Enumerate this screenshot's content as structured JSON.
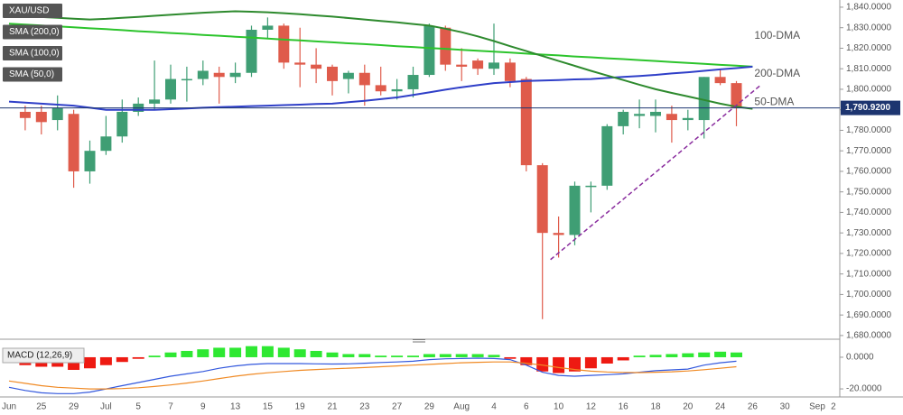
{
  "chart_data": [
    {
      "type": "candlestick",
      "symbol": "XAU/USD",
      "categories": [
        "Jun",
        null,
        "25",
        null,
        "29",
        null,
        "Jul",
        null,
        "5",
        null,
        "7",
        null,
        "9",
        null,
        "13",
        null,
        "15",
        null,
        "19",
        null,
        "21",
        null,
        "23",
        null,
        "27",
        null,
        "29",
        null,
        "Aug",
        null,
        "4",
        null,
        "6",
        null,
        "10",
        null,
        "12",
        null,
        "16",
        null,
        "18",
        null,
        "20",
        null,
        "24",
        null,
        "26",
        null,
        "30",
        null,
        "Sep",
        "2"
      ],
      "open": [
        null,
        1789,
        1789,
        1785,
        1788,
        1760,
        1770,
        1777,
        1789,
        1793,
        1795,
        1805,
        1805,
        1808,
        1806,
        1808,
        1829,
        1831,
        1813,
        1812,
        1811,
        1805,
        1808,
        1802,
        1799,
        1800,
        1807,
        1830,
        1812,
        1814,
        1810,
        1813,
        1805,
        1763,
        1730,
        1729,
        1753,
        1753,
        1782,
        1787,
        1787,
        1788,
        1785,
        1785,
        1806,
        1803,
        null,
        null,
        null,
        null,
        null,
        null
      ],
      "high": [
        null,
        1792,
        1792,
        1797,
        1790,
        1775,
        1787,
        1795,
        1796,
        1814,
        1812,
        1811,
        1814,
        1811,
        1813,
        1831,
        1835,
        1832,
        1830,
        1820,
        1812,
        1809,
        1812,
        1811,
        1805,
        1811,
        1832,
        1831,
        1820,
        1815,
        1832,
        1815,
        1806,
        1764,
        1738,
        1755,
        1755,
        1783,
        1790,
        1795,
        1795,
        1792,
        1790,
        1806,
        1810,
        1804,
        null,
        null,
        null,
        null,
        null,
        null
      ],
      "low": [
        null,
        1780,
        1778,
        1780,
        1752,
        1754,
        1768,
        1774,
        1787,
        1790,
        1793,
        1794,
        1802,
        1793,
        1803,
        1806,
        1825,
        1810,
        1801,
        1803,
        1797,
        1798,
        1792,
        1797,
        1795,
        1796,
        1806,
        1809,
        1804,
        1807,
        1807,
        1801,
        1760,
        1688,
        1718,
        1724,
        1740,
        1751,
        1778,
        1781,
        1779,
        1774,
        1780,
        1776,
        1802,
        1782,
        null,
        null,
        null,
        null,
        null,
        null
      ],
      "close": [
        null,
        1786,
        1784,
        1791,
        1760,
        1770,
        1777,
        1789,
        1793,
        1795,
        1805,
        1805,
        1809,
        1806,
        1808,
        1829,
        1831,
        1813,
        1812,
        1810,
        1804,
        1808,
        1802,
        1799,
        1800,
        1807,
        1831,
        1812,
        1811,
        1810,
        1813,
        1804,
        1763,
        1730,
        1729,
        1753,
        1753,
        1782,
        1789,
        1788,
        1789,
        1785,
        1786,
        1806,
        1803,
        1791,
        null,
        null,
        null,
        null,
        null,
        null
      ],
      "up_color": "#3f9e74",
      "down_color": "#df5b4b",
      "series": [
        {
          "name": "SMA (200,0)",
          "label": "200-DMA",
          "color": "#2cc42c",
          "values": [
            1832,
            1831.5,
            1831.1,
            1830.6,
            1830.2,
            1829.7,
            1829.3,
            1828.8,
            1828.3,
            1827.9,
            1827.4,
            1827,
            1826.5,
            1826.1,
            1825.6,
            1825.2,
            1824.7,
            1824.2,
            1823.8,
            1823.3,
            1822.9,
            1822.4,
            1822,
            1821.5,
            1821,
            1820.6,
            1820.1,
            1819.7,
            1819.2,
            1818.8,
            1818.3,
            1817.9,
            1817.4,
            1816.9,
            1816.5,
            1816,
            1815.6,
            1815.1,
            1814.7,
            1814.2,
            1813.8,
            1813.3,
            1812.8,
            1812.4,
            1811.9,
            1811.5,
            1811,
            null,
            null,
            null,
            null,
            null
          ]
        },
        {
          "name": "SMA (100,0)",
          "label": "100-DMA",
          "color": "#2f3fc8",
          "values": [
            1794,
            1793.5,
            1793,
            1792.5,
            1792,
            1791,
            1790,
            1790,
            1790,
            1790,
            1790.3,
            1790.6,
            1791,
            1791.3,
            1791.5,
            1791.8,
            1792,
            1792.3,
            1792.5,
            1792.8,
            1793,
            1793.7,
            1794.4,
            1795.2,
            1796,
            1797.2,
            1798.5,
            1799.8,
            1801,
            1802,
            1803,
            1803.5,
            1804,
            1804.3,
            1804.5,
            1804.8,
            1805,
            1805.5,
            1806,
            1806.5,
            1807,
            1807.7,
            1808.3,
            1809,
            1809.7,
            1810.3,
            1811,
            null,
            null,
            null,
            null,
            null
          ]
        },
        {
          "name": "SMA (50,0)",
          "label": "50-DMA",
          "color": "#2e8a2e",
          "values": [
            1836,
            1835.6,
            1835.2,
            1834.8,
            1834.4,
            1834,
            1834.3,
            1834.8,
            1835.3,
            1835.8,
            1836.3,
            1836.8,
            1837.3,
            1837.7,
            1838,
            1837.8,
            1837.5,
            1837.1,
            1836.6,
            1836,
            1835.4,
            1834.7,
            1834,
            1833.3,
            1832.6,
            1831.8,
            1831,
            1829.5,
            1827.8,
            1825.8,
            1823.5,
            1821,
            1818.6,
            1816.2,
            1813.8,
            1811.4,
            1809,
            1806.7,
            1804.5,
            1802.2,
            1800,
            1798.2,
            1796.5,
            1794.8,
            1793,
            1791.5,
            1790.5,
            null,
            null,
            null,
            null,
            null
          ]
        }
      ],
      "ylim": [
        1678.2,
        1843.5
      ],
      "yticks": [
        {
          "value": 1680,
          "label": "1,680.0000"
        },
        {
          "value": 1690,
          "label": "1,690.0000"
        },
        {
          "value": 1700,
          "label": "1,700.0000"
        },
        {
          "value": 1710,
          "label": "1,710.0000"
        },
        {
          "value": 1720,
          "label": "1,720.0000"
        },
        {
          "value": 1730,
          "label": "1,730.0000"
        },
        {
          "value": 1740,
          "label": "1,740.0000"
        },
        {
          "value": 1750,
          "label": "1,750.0000"
        },
        {
          "value": 1760,
          "label": "1,760.0000"
        },
        {
          "value": 1770,
          "label": "1,770.0000"
        },
        {
          "value": 1780,
          "label": "1,780.0000"
        },
        {
          "value": 1790,
          "label": "1,790.0000"
        },
        {
          "value": 1800,
          "label": "1,800.0000"
        },
        {
          "value": 1810,
          "label": "1,810.0000"
        },
        {
          "value": 1820,
          "label": "1,820.0000"
        },
        {
          "value": 1830,
          "label": "1,830.0000"
        },
        {
          "value": 1840,
          "label": "1,840.0000"
        }
      ],
      "last_price": {
        "value": 1790.92,
        "label": "1,790.9200",
        "color": "#1d3570"
      },
      "trend_line": {
        "start": [
          33.5,
          1717
        ],
        "end": [
          46.5,
          1802
        ],
        "color": "#8a2d9e"
      }
    },
    {
      "type": "macd",
      "title": "MACD (12,26,9)",
      "histogram": {
        "up_color": "#2ee832",
        "down_color": "#ee1a12",
        "values": [
          null,
          -5,
          -6,
          -6,
          -8,
          -7,
          -5,
          -3,
          -1,
          1,
          3,
          4,
          5,
          6,
          6,
          7,
          7,
          6,
          5,
          4,
          3,
          2,
          2,
          1,
          1,
          1,
          2,
          2,
          2,
          2,
          1.5,
          -1,
          -5,
          -9,
          -10,
          -9,
          -7,
          -4,
          -2,
          1,
          1.5,
          2,
          2.5,
          3,
          3.5,
          3,
          null,
          null,
          null,
          null,
          null,
          null
        ]
      },
      "series": [
        {
          "color": "#3358dd",
          "values": [
            -19,
            -21,
            -22.5,
            -23,
            -23,
            -22,
            -20,
            -18,
            -16,
            -14,
            -12,
            -10.5,
            -9,
            -7,
            -5.5,
            -4.5,
            -4,
            -4,
            -4,
            -4.2,
            -4.3,
            -4.2,
            -3.8,
            -3.3,
            -3,
            -2.5,
            -1.5,
            -1,
            -0.8,
            -0.6,
            -0.8,
            -1.5,
            -5,
            -9.5,
            -11.5,
            -12,
            -11.5,
            -11,
            -10.5,
            -9.5,
            -8.5,
            -8,
            -7.5,
            -5,
            -3.5,
            -2.5,
            null,
            null,
            null,
            null,
            null,
            null
          ]
        },
        {
          "color": "#f08a24",
          "values": [
            -15,
            -16.5,
            -18,
            -19,
            -19.5,
            -20,
            -20,
            -19.8,
            -19.3,
            -18.5,
            -17.5,
            -16.3,
            -15,
            -13.5,
            -12,
            -10.8,
            -9.8,
            -9,
            -8.3,
            -7.8,
            -7.3,
            -6.9,
            -6.5,
            -6,
            -5.5,
            -5,
            -4.5,
            -4,
            -3.5,
            -3.2,
            -3,
            -3,
            -3.8,
            -5,
            -6.5,
            -7.8,
            -8.8,
            -9.3,
            -9.6,
            -9.7,
            -9.5,
            -9.2,
            -8.7,
            -7.9,
            -7,
            -6,
            null,
            null,
            null,
            null,
            null,
            null
          ]
        }
      ],
      "ylim": [
        -25.1,
        9.1
      ],
      "yticks": [
        {
          "value": 0,
          "label": "0.0000"
        },
        {
          "value": -20,
          "label": "-20.0000"
        }
      ]
    }
  ]
}
